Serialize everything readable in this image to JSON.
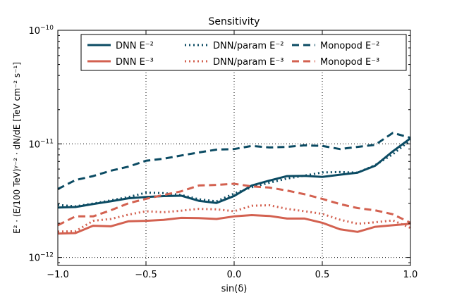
{
  "chart_data": {
    "type": "line",
    "title": "Sensitivity",
    "xlabel": "sin(δ)",
    "ylabel": "E² · (E/100 TeV)ᵞ⁻² · dN/dE  [TeV cm⁻² s⁻¹]",
    "xlim": [
      -1.0,
      1.0
    ],
    "ylim": [
      8.5e-13,
      1e-10
    ],
    "yscale": "log",
    "grid": true,
    "legend_position": "top",
    "xticks": [
      {
        "value": -1.0,
        "label": "−1.0"
      },
      {
        "value": -0.5,
        "label": "−0.5"
      },
      {
        "value": 0.0,
        "label": "0.0"
      },
      {
        "value": 0.5,
        "label": "0.5"
      },
      {
        "value": 1.0,
        "label": "1.0"
      }
    ],
    "yticks": [
      {
        "value": 1e-12,
        "base": "10",
        "exp": "−12"
      },
      {
        "value": 1e-11,
        "base": "10",
        "exp": "−11"
      },
      {
        "value": 1e-10,
        "base": "10",
        "exp": "−10"
      }
    ],
    "series": [
      {
        "name": "DNN E⁻²",
        "color": "#0b4b63",
        "dash": "solid",
        "x": [
          -1.0,
          -0.9,
          -0.8,
          -0.7,
          -0.6,
          -0.5,
          -0.4,
          -0.3,
          -0.2,
          -0.1,
          0.0,
          0.1,
          0.2,
          0.3,
          0.4,
          0.5,
          0.6,
          0.7,
          0.8,
          0.9,
          1.0
        ],
        "y": [
          2.75e-12,
          2.78e-12,
          2.95e-12,
          3.12e-12,
          3.32e-12,
          3.41e-12,
          3.47e-12,
          3.5e-12,
          3.15e-12,
          3.02e-12,
          3.48e-12,
          4.3e-12,
          4.75e-12,
          5.2e-12,
          5.22e-12,
          5.12e-12,
          5.35e-12,
          5.58e-12,
          6.42e-12,
          8.6e-12,
          1.12e-11
        ]
      },
      {
        "name": "DNN/param E⁻²",
        "color": "#0b4b63",
        "dash": "dotted",
        "x": [
          -1.0,
          -0.9,
          -0.8,
          -0.7,
          -0.6,
          -0.5,
          -0.4,
          -0.3,
          -0.2,
          -0.1,
          0.0,
          0.1,
          0.2,
          0.3,
          0.4,
          0.5,
          0.6,
          0.7,
          0.8,
          0.9,
          1.0
        ],
        "y": [
          2.9e-12,
          2.82e-12,
          2.98e-12,
          3.18e-12,
          3.4e-12,
          3.72e-12,
          3.68e-12,
          3.55e-12,
          3.25e-12,
          3.12e-12,
          3.65e-12,
          4.15e-12,
          4.55e-12,
          4.95e-12,
          5.25e-12,
          5.6e-12,
          5.65e-12,
          5.58e-12,
          6.5e-12,
          8.1e-12,
          1.08e-11
        ]
      },
      {
        "name": "Monopod E⁻²",
        "color": "#0b4b63",
        "dash": "dashed",
        "x": [
          -1.0,
          -0.9,
          -0.8,
          -0.7,
          -0.6,
          -0.5,
          -0.4,
          -0.3,
          -0.2,
          -0.1,
          0.0,
          0.1,
          0.2,
          0.3,
          0.4,
          0.5,
          0.6,
          0.7,
          0.8,
          0.9,
          1.0
        ],
        "y": [
          4e-12,
          4.8e-12,
          5.2e-12,
          5.8e-12,
          6.3e-12,
          7.1e-12,
          7.4e-12,
          7.9e-12,
          8.4e-12,
          8.9e-12,
          9e-12,
          9.6e-12,
          9.3e-12,
          9.4e-12,
          9.7e-12,
          9.6e-12,
          9e-12,
          9.4e-12,
          9.8e-12,
          1.25e-11,
          1.13e-11
        ]
      },
      {
        "name": "DNN E⁻³",
        "color": "#d36150",
        "dash": "solid",
        "x": [
          -1.0,
          -0.9,
          -0.8,
          -0.7,
          -0.6,
          -0.5,
          -0.4,
          -0.3,
          -0.2,
          -0.1,
          0.0,
          0.1,
          0.2,
          0.3,
          0.4,
          0.5,
          0.6,
          0.7,
          0.8,
          0.9,
          1.0
        ],
        "y": [
          1.62e-12,
          1.64e-12,
          1.9e-12,
          1.88e-12,
          2.08e-12,
          2.1e-12,
          2.14e-12,
          2.23e-12,
          2.22e-12,
          2.18e-12,
          2.3e-12,
          2.36e-12,
          2.32e-12,
          2.2e-12,
          2.2e-12,
          2.02e-12,
          1.77e-12,
          1.68e-12,
          1.86e-12,
          1.92e-12,
          1.98e-12
        ]
      },
      {
        "name": "DNN/param E⁻³",
        "color": "#d36150",
        "dash": "dotted",
        "x": [
          -1.0,
          -0.9,
          -0.8,
          -0.7,
          -0.6,
          -0.5,
          -0.4,
          -0.3,
          -0.2,
          -0.1,
          0.0,
          0.1,
          0.2,
          0.3,
          0.4,
          0.5,
          0.6,
          0.7,
          0.8,
          0.9,
          1.0
        ],
        "y": [
          1.69e-12,
          1.7e-12,
          2.1e-12,
          2.18e-12,
          2.38e-12,
          2.55e-12,
          2.5e-12,
          2.58e-12,
          2.68e-12,
          2.65e-12,
          2.55e-12,
          2.85e-12,
          2.88e-12,
          2.68e-12,
          2.55e-12,
          2.42e-12,
          2.15e-12,
          1.98e-12,
          2.04e-12,
          2.12e-12,
          1.82e-12
        ]
      },
      {
        "name": "Monopod E⁻³",
        "color": "#d36150",
        "dash": "dashed",
        "x": [
          -1.0,
          -0.9,
          -0.8,
          -0.7,
          -0.6,
          -0.5,
          -0.4,
          -0.3,
          -0.2,
          -0.1,
          0.0,
          0.1,
          0.2,
          0.3,
          0.4,
          0.5,
          0.6,
          0.7,
          0.8,
          0.9,
          1.0
        ],
        "y": [
          1.92e-12,
          2.3e-12,
          2.3e-12,
          2.6e-12,
          3e-12,
          3.28e-12,
          3.55e-12,
          3.82e-12,
          4.3e-12,
          4.35e-12,
          4.45e-12,
          4.22e-12,
          4.12e-12,
          3.88e-12,
          3.6e-12,
          3.28e-12,
          2.95e-12,
          2.72e-12,
          2.6e-12,
          2.4e-12,
          2.02e-12
        ]
      }
    ]
  }
}
